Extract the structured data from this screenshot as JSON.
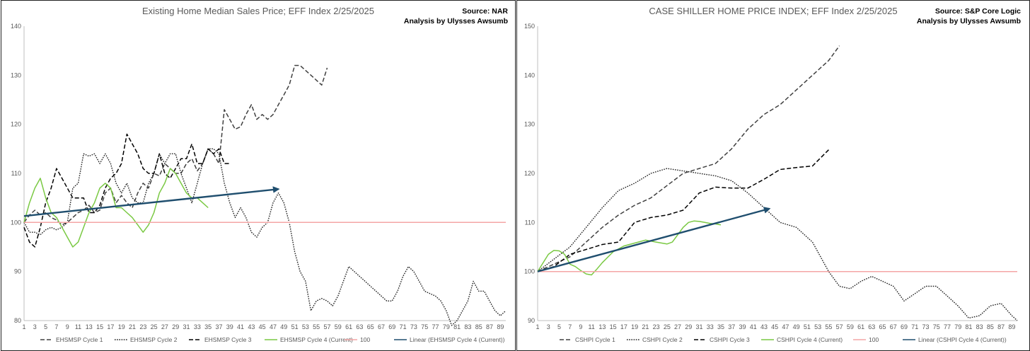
{
  "charts": [
    {
      "title": "Existing Home Median Sales Price; EFF Index 2/25/2025",
      "source": "Source: NAR",
      "analysis": "Analysis by Ulysses Awsumb"
    },
    {
      "title": "CASE SHILLER HOME PRICE INDEX; EFF Index 2/25/2025",
      "source": "Source: S&P Core Logic",
      "analysis": "Analysis by Ulysses Awsumb"
    }
  ],
  "chart_data": [
    {
      "type": "line",
      "title": "Existing Home Median Sales Price; EFF Index 2/25/2025",
      "xlim": [
        1,
        90
      ],
      "ylim": [
        80,
        140
      ],
      "yticks": [
        80,
        90,
        100,
        110,
        120,
        130,
        140
      ],
      "xticks": [
        1,
        3,
        5,
        7,
        9,
        11,
        13,
        15,
        17,
        19,
        21,
        23,
        25,
        27,
        29,
        31,
        33,
        35,
        37,
        39,
        41,
        43,
        45,
        47,
        49,
        51,
        53,
        55,
        57,
        59,
        61,
        63,
        65,
        67,
        69,
        71,
        73,
        75,
        77,
        79,
        81,
        83,
        85,
        87,
        89
      ],
      "legend_position": "bottom",
      "series": [
        {
          "name": "EHSMSP Cycle 1",
          "style": "dashed",
          "color": "#404040",
          "x": [
            1,
            2,
            3,
            4,
            5,
            6,
            7,
            8,
            9,
            10,
            11,
            12,
            13,
            14,
            15,
            16,
            17,
            18,
            19,
            20,
            21,
            22,
            23,
            24,
            25,
            26,
            27,
            28,
            29,
            30,
            31,
            32,
            33,
            34,
            35,
            36,
            37,
            38,
            39,
            40,
            41,
            42,
            43,
            44,
            45,
            46,
            47,
            48,
            49,
            50,
            51,
            52,
            53,
            54,
            55,
            56,
            57
          ],
          "y": [
            100,
            101.5,
            102.5,
            101.5,
            102,
            101,
            100.5,
            99.5,
            100,
            101,
            102,
            102.5,
            103.5,
            102,
            102.5,
            106,
            107,
            104,
            105.5,
            104,
            103,
            106,
            108,
            107,
            110,
            109.5,
            112,
            111,
            110,
            110,
            112,
            113,
            110.5,
            112,
            115,
            114,
            112,
            123,
            121,
            119,
            119.5,
            122,
            124,
            121,
            122,
            121,
            122,
            124,
            126,
            128,
            132,
            132,
            131,
            130,
            129,
            128,
            131.5
          ]
        },
        {
          "name": "EHSMSP Cycle 2",
          "style": "dotted",
          "color": "#222222",
          "x": [
            1,
            2,
            3,
            4,
            5,
            6,
            7,
            8,
            9,
            10,
            11,
            12,
            13,
            14,
            15,
            16,
            17,
            18,
            19,
            20,
            21,
            22,
            23,
            24,
            25,
            26,
            27,
            28,
            29,
            30,
            31,
            32,
            33,
            34,
            35,
            36,
            37,
            38,
            39,
            40,
            41,
            42,
            43,
            44,
            45,
            46,
            47,
            48,
            49,
            50,
            51,
            52,
            53,
            54,
            55,
            56,
            57,
            58,
            59,
            60,
            61,
            62,
            63,
            64,
            65,
            66,
            67,
            68,
            69,
            70,
            71,
            72,
            73,
            74,
            75,
            76,
            77,
            78,
            79,
            80,
            81,
            82,
            83,
            84,
            85,
            86,
            87,
            88,
            89,
            90
          ],
          "y": [
            100,
            98,
            98,
            97.5,
            98.5,
            99,
            98.5,
            99,
            100,
            107,
            108,
            114,
            113.5,
            114,
            112,
            114,
            112,
            108,
            106,
            108,
            105,
            104,
            104,
            108,
            110,
            114,
            112,
            114,
            114,
            110,
            107,
            104,
            108,
            112,
            115,
            115,
            114,
            108,
            104,
            101,
            103,
            101,
            98,
            97,
            99,
            100,
            104,
            106,
            104,
            100,
            94,
            90,
            88,
            82,
            84,
            84.5,
            84,
            83,
            85,
            88,
            91,
            90,
            89,
            88,
            87,
            86,
            85,
            84,
            84,
            86,
            89,
            91,
            90,
            88,
            86,
            85.5,
            85,
            84,
            82,
            79,
            80,
            82,
            84,
            88,
            86,
            86,
            84,
            82,
            81,
            82
          ]
        },
        {
          "name": "EHSMSP Cycle 3",
          "style": "dashed",
          "color": "#000000",
          "x": [
            1,
            2,
            3,
            4,
            5,
            6,
            7,
            8,
            9,
            10,
            11,
            12,
            13,
            14,
            15,
            16,
            17,
            18,
            19,
            20,
            21,
            22,
            23,
            24,
            25,
            26,
            27,
            28,
            29,
            30,
            31,
            32,
            33,
            34,
            35,
            36,
            37,
            38,
            39
          ],
          "y": [
            99,
            96,
            95,
            99,
            104,
            107,
            111,
            109,
            107,
            105,
            105,
            105,
            102,
            102,
            103.5,
            107,
            109,
            110,
            112,
            118,
            116,
            114,
            111,
            110,
            110,
            114,
            110,
            109,
            111,
            113,
            113,
            116,
            112,
            112,
            115,
            114,
            115,
            112,
            112
          ]
        },
        {
          "name": "EHSMSP Cycle 4 (Current)",
          "style": "solid",
          "color": "#7AC943",
          "x": [
            1,
            2,
            3,
            4,
            5,
            6,
            7,
            8,
            9,
            10,
            11,
            12,
            13,
            14,
            15,
            16,
            17,
            18,
            19,
            20,
            21,
            22,
            23,
            24,
            25,
            26,
            27,
            28,
            29,
            30,
            31,
            32,
            33,
            34,
            35
          ],
          "y": [
            100,
            104,
            107,
            109,
            105,
            102,
            101,
            99,
            97,
            95,
            96,
            99,
            102,
            104,
            107,
            108,
            107,
            103,
            103,
            102,
            101,
            99.5,
            98,
            99.5,
            102,
            106,
            108,
            111,
            110,
            108,
            106,
            105,
            105,
            104,
            103
          ]
        },
        {
          "name": "100",
          "style": "solid",
          "color": "#F4A6A6",
          "x": [
            1,
            90
          ],
          "y": [
            100,
            100
          ]
        },
        {
          "name": "Linear (EHSMSP Cycle 4 (Current))",
          "style": "arrow",
          "color": "#1F4E6E",
          "x": [
            1,
            48
          ],
          "y": [
            101.3,
            106.8
          ]
        }
      ]
    },
    {
      "type": "line",
      "title": "CASE SHILLER HOME PRICE INDEX; EFF Index 2/25/2025",
      "xlim": [
        1,
        90
      ],
      "ylim": [
        90,
        150
      ],
      "yticks": [
        90,
        100,
        110,
        120,
        130,
        140,
        150
      ],
      "xticks": [
        1,
        3,
        5,
        7,
        9,
        11,
        13,
        15,
        17,
        19,
        21,
        23,
        25,
        27,
        29,
        31,
        33,
        35,
        37,
        39,
        41,
        43,
        45,
        47,
        49,
        51,
        53,
        55,
        57,
        59,
        61,
        63,
        65,
        67,
        69,
        71,
        73,
        75,
        77,
        79,
        81,
        83,
        85,
        87,
        89
      ],
      "legend_position": "bottom",
      "series": [
        {
          "name": "CSHPI Cycle 1",
          "style": "dashed",
          "color": "#404040",
          "x": [
            1,
            4,
            7,
            10,
            13,
            16,
            19,
            22,
            25,
            28,
            31,
            34,
            37,
            40,
            43,
            46,
            49,
            52,
            55,
            57
          ],
          "y": [
            100,
            101.5,
            103,
            106,
            109,
            111.5,
            113.5,
            115,
            117.5,
            120,
            121,
            122,
            125,
            129,
            132,
            134,
            137,
            140,
            143,
            146
          ]
        },
        {
          "name": "CSHPI Cycle 2",
          "style": "dotted",
          "color": "#222222",
          "x": [
            1,
            4,
            7,
            10,
            13,
            16,
            19,
            22,
            25,
            28,
            31,
            34,
            37,
            40,
            43,
            46,
            49,
            52,
            55,
            57,
            59,
            61,
            63,
            65,
            67,
            69,
            71,
            73,
            75,
            77,
            79,
            81,
            83,
            85,
            87,
            89,
            90
          ],
          "y": [
            100,
            102.5,
            105,
            109,
            113,
            116.5,
            118,
            120,
            121,
            120.5,
            120,
            119.5,
            118.5,
            116,
            113,
            110,
            109,
            106,
            100,
            97,
            96.5,
            98,
            99,
            98,
            97,
            94,
            95.5,
            97,
            97,
            95,
            93,
            90.5,
            91,
            93,
            93.5,
            91,
            90
          ]
        },
        {
          "name": "CSHPI Cycle 3",
          "style": "dashed",
          "color": "#000000",
          "x": [
            1,
            4,
            7,
            10,
            13,
            16,
            19,
            22,
            25,
            28,
            31,
            34,
            37,
            40,
            43,
            46,
            49,
            52,
            55
          ],
          "y": [
            100,
            101,
            103.5,
            104.5,
            105.5,
            106,
            110,
            111,
            111.5,
            112.5,
            116,
            117.2,
            117,
            117,
            118.8,
            120.8,
            121.2,
            121.5,
            124.8
          ]
        },
        {
          "name": "CSHPI Cycle 4 (Current)",
          "style": "solid",
          "color": "#7AC943",
          "x": [
            1,
            3,
            4,
            5,
            6,
            7,
            8,
            9,
            10,
            11,
            12,
            13,
            15,
            17,
            19,
            21,
            23,
            25,
            26,
            27,
            28,
            29,
            30,
            31,
            32,
            33,
            34,
            35
          ],
          "y": [
            100,
            103.5,
            104.3,
            104.2,
            103.5,
            101.5,
            101,
            100.2,
            99.5,
            99.3,
            100.5,
            101.8,
            104,
            105.2,
            105.8,
            106.4,
            106,
            105.6,
            106,
            107.5,
            109,
            110,
            110.3,
            110.2,
            110,
            109.8,
            109.7,
            109.5
          ]
        },
        {
          "name": "100",
          "style": "solid",
          "color": "#F4A6A6",
          "x": [
            1,
            90
          ],
          "y": [
            100,
            100
          ]
        },
        {
          "name": "Linear (CSHPI Cycle 4 (Current))",
          "style": "arrow",
          "color": "#1F4E6E",
          "x": [
            1,
            44
          ],
          "y": [
            100,
            112.8
          ]
        }
      ]
    }
  ]
}
